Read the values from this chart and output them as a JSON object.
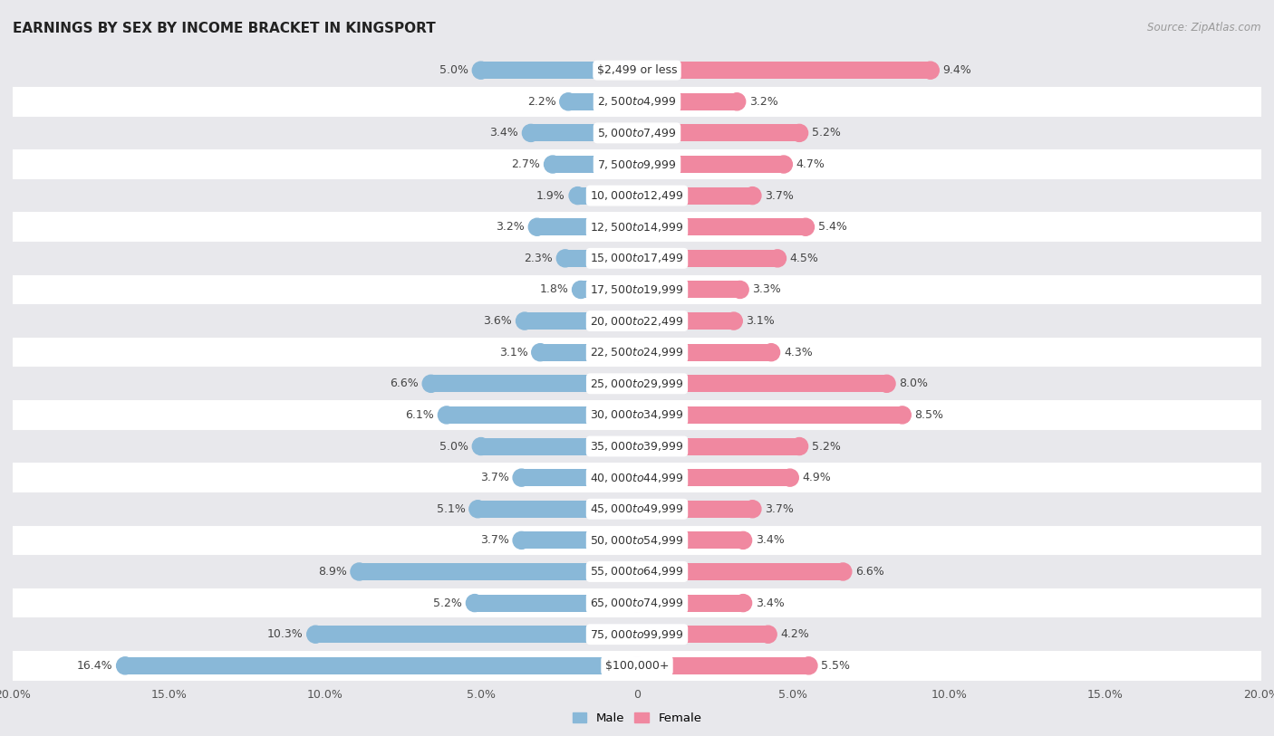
{
  "title": "EARNINGS BY SEX BY INCOME BRACKET IN KINGSPORT",
  "source": "Source: ZipAtlas.com",
  "categories": [
    "$2,499 or less",
    "$2,500 to $4,999",
    "$5,000 to $7,499",
    "$7,500 to $9,999",
    "$10,000 to $12,499",
    "$12,500 to $14,999",
    "$15,000 to $17,499",
    "$17,500 to $19,999",
    "$20,000 to $22,499",
    "$22,500 to $24,999",
    "$25,000 to $29,999",
    "$30,000 to $34,999",
    "$35,000 to $39,999",
    "$40,000 to $44,999",
    "$45,000 to $49,999",
    "$50,000 to $54,999",
    "$55,000 to $64,999",
    "$65,000 to $74,999",
    "$75,000 to $99,999",
    "$100,000+"
  ],
  "male_values": [
    5.0,
    2.2,
    3.4,
    2.7,
    1.9,
    3.2,
    2.3,
    1.8,
    3.6,
    3.1,
    6.6,
    6.1,
    5.0,
    3.7,
    5.1,
    3.7,
    8.9,
    5.2,
    10.3,
    16.4
  ],
  "female_values": [
    9.4,
    3.2,
    5.2,
    4.7,
    3.7,
    5.4,
    4.5,
    3.3,
    3.1,
    4.3,
    8.0,
    8.5,
    5.2,
    4.9,
    3.7,
    3.4,
    6.6,
    3.4,
    4.2,
    5.5
  ],
  "male_color": "#89b8d8",
  "female_color": "#f088a0",
  "male_label": "Male",
  "female_label": "Female",
  "xlim": 20.0,
  "bg_color": "#e8e8ec",
  "row_even_color": "#ffffff",
  "row_odd_color": "#e8e8ec",
  "title_fontsize": 11,
  "label_fontsize": 9,
  "tick_fontsize": 9,
  "value_fontsize": 9,
  "source_fontsize": 8.5
}
